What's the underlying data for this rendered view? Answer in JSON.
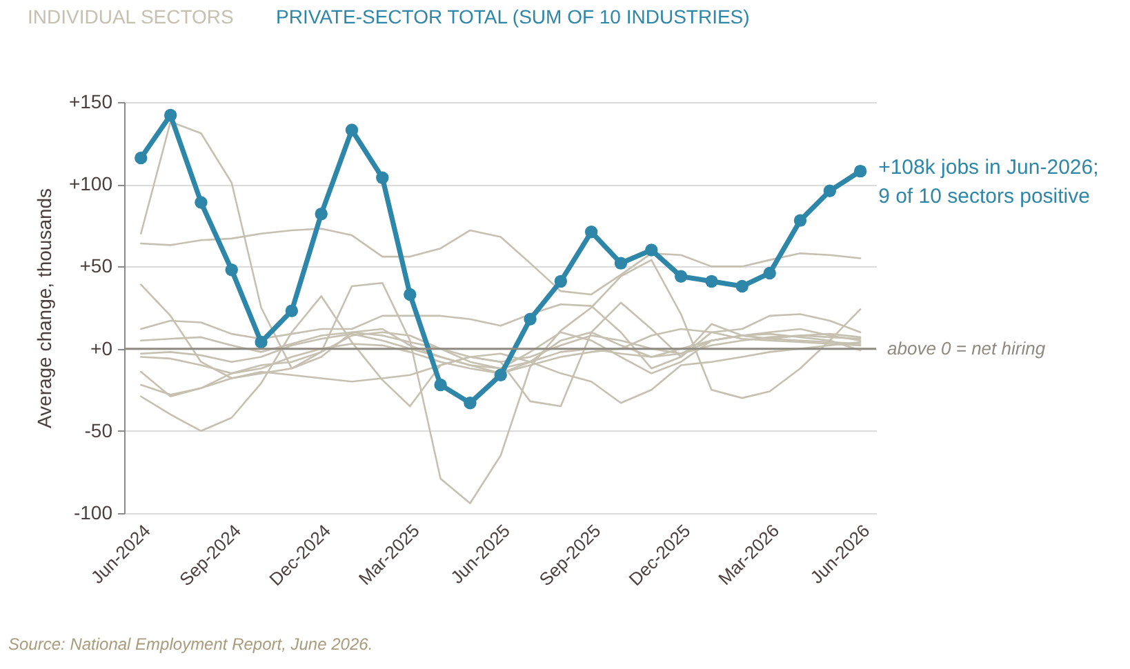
{
  "chart_data": {
    "type": "line",
    "x": [
      "2024-06",
      "2024-07",
      "2024-08",
      "2024-09",
      "2024-10",
      "2024-11",
      "2024-12",
      "2025-01",
      "2025-02",
      "2025-03",
      "2025-04",
      "2025-05",
      "2025-06",
      "2025-07",
      "2025-08",
      "2025-09",
      "2025-10",
      "2025-11",
      "2025-12",
      "2026-01",
      "2026-02",
      "2026-03",
      "2026-04",
      "2026-05",
      "2026-06"
    ],
    "series": [
      {
        "name": "INDIVIDUAL SECTORS",
        "color": "#c6c0b0",
        "values": [
          64,
          63,
          66,
          67,
          70,
          72,
          73,
          69,
          56,
          56,
          61,
          72,
          68,
          52,
          35,
          33,
          45,
          58,
          57,
          50,
          50,
          54,
          58,
          57,
          55
        ]
      },
      {
        "color": "#c6c0b0",
        "values": [
          70,
          138,
          131,
          101,
          25,
          -12,
          -5,
          10,
          12,
          2,
          -5,
          -10,
          -15,
          -8,
          5,
          10,
          2,
          -5,
          -3,
          5,
          8,
          10,
          12,
          8,
          5
        ]
      },
      {
        "color": "#c6c0b0",
        "values": [
          39,
          20,
          -8,
          -18,
          -15,
          -12,
          -2,
          8,
          10,
          8,
          0,
          -8,
          -12,
          -2,
          10,
          5,
          -5,
          -15,
          -8,
          5,
          8,
          6,
          5,
          4,
          3
        ]
      },
      {
        "color": "#c6c0b0",
        "values": [
          12,
          17,
          16,
          9,
          6,
          9,
          12,
          12,
          20,
          20,
          20,
          18,
          14,
          21,
          27,
          26,
          10,
          -12,
          -5,
          10,
          12,
          20,
          21,
          17,
          10
        ]
      },
      {
        "color": "#c6c0b0",
        "values": [
          5,
          6,
          7,
          2,
          -2,
          3,
          8,
          10,
          8,
          4,
          0,
          -5,
          -8,
          -5,
          2,
          8,
          5,
          0,
          -3,
          2,
          5,
          7,
          8,
          7,
          6
        ]
      },
      {
        "color": "#c6c0b0",
        "values": [
          -3,
          -2,
          -4,
          -8,
          -5,
          2,
          6,
          9,
          5,
          0,
          -5,
          -10,
          -12,
          -8,
          -2,
          0,
          -3,
          -5,
          0,
          5,
          8,
          9,
          7,
          5,
          -1
        ]
      },
      {
        "color": "#c6c0b0",
        "values": [
          -5,
          -6,
          -10,
          -15,
          -12,
          -5,
          0,
          3,
          2,
          -2,
          -8,
          -12,
          -15,
          -10,
          -5,
          -2,
          0,
          8,
          12,
          10,
          6,
          5,
          4,
          3,
          2
        ]
      },
      {
        "color": "#c6c0b0",
        "values": [
          -14,
          -29,
          -24,
          -15,
          -10,
          -8,
          -2,
          38,
          40,
          5,
          -79,
          -94,
          -65,
          -11,
          11,
          25,
          44,
          54,
          21,
          -25,
          -30,
          -26,
          -12,
          5,
          24
        ]
      },
      {
        "color": "#c6c0b0",
        "values": [
          -22,
          -28,
          -24,
          -18,
          -14,
          -16,
          -18,
          -20,
          -18,
          -16,
          -10,
          -5,
          -3,
          -8,
          -15,
          -20,
          -33,
          -25,
          -10,
          -8,
          -5,
          -2,
          0,
          2,
          4
        ]
      },
      {
        "color": "#c6c0b0",
        "values": [
          -29,
          -40,
          -50,
          -42,
          -21,
          10,
          32,
          4,
          -19,
          -35,
          -10,
          -5,
          -8,
          -32,
          -35,
          10,
          28,
          12,
          -5,
          15,
          8,
          6,
          8,
          9,
          7
        ]
      },
      {
        "name": "PRIVATE-SECTOR TOTAL (SUM OF 10 INDUSTRIES)",
        "color": "#2e87a8",
        "marker": "circle",
        "values": [
          116,
          142,
          89,
          48,
          4,
          23,
          82,
          133,
          104,
          33,
          -22,
          -33,
          -16,
          18,
          41,
          71,
          52,
          60,
          44,
          41,
          38,
          46,
          78,
          96,
          108
        ]
      }
    ],
    "xlim": [
      "2024-05-15",
      "2026-06-17"
    ],
    "xticks": [
      {
        "value": "2024-06",
        "label": "Jun-2024"
      },
      {
        "value": "2024-09",
        "label": "Sep-2024"
      },
      {
        "value": "2024-12",
        "label": "Dec-2024"
      },
      {
        "value": "2025-03",
        "label": "Mar-2025"
      },
      {
        "value": "2025-06",
        "label": "Jun-2025"
      },
      {
        "value": "2025-09",
        "label": "Sep-2025"
      },
      {
        "value": "2025-12",
        "label": "Dec-2025"
      },
      {
        "value": "2026-03",
        "label": "Mar-2026"
      },
      {
        "value": "2026-06",
        "label": "Jun-2026"
      }
    ],
    "ylim": [
      -100,
      150
    ],
    "yticks": [
      {
        "value": 150,
        "label": "+150"
      },
      {
        "value": 100,
        "label": "+100"
      },
      {
        "value": 50,
        "label": "+50"
      },
      {
        "value": 0,
        "label": "+0"
      },
      -50,
      -100
    ],
    "ylabel": "Average change, thousands",
    "grid": "y",
    "legend": "top left",
    "line_style": "solid",
    "ref_lines": [
      {
        "axis": "y",
        "value": 0,
        "label": "above 0 = net hiring",
        "color": "#8f8a80"
      }
    ],
    "annotations": [
      {
        "text": "+108k jobs in Jun-2026;\n9 of 10 sectors positive",
        "x": "2026-06",
        "y": 108
      },
      "Source: National Employment Report, June 2026."
    ]
  }
}
